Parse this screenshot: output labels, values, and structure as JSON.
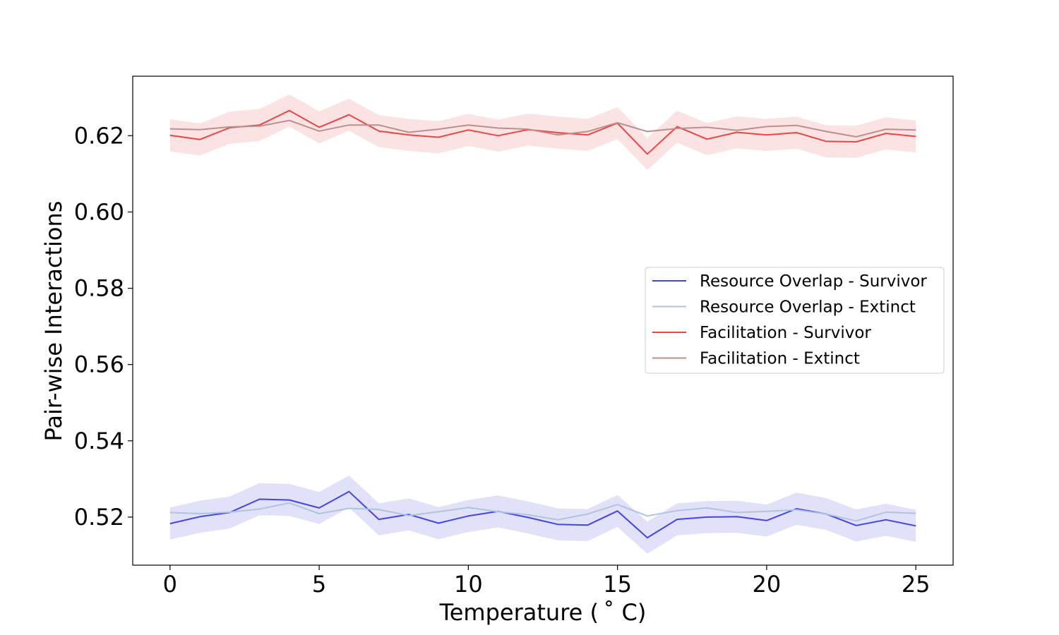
{
  "chart_data": {
    "type": "line",
    "title": "",
    "xlabel": "Temperature ($^\\circ$C)",
    "xlabel_display": "Temperature ( ˚ C)",
    "ylabel": "Pair-wise Interactions",
    "xlim": [
      -1.25,
      26.25
    ],
    "ylim": [
      0.5074,
      0.6356
    ],
    "xticks": [
      0,
      5,
      10,
      15,
      20,
      25
    ],
    "xtick_labels": [
      "0",
      "5",
      "10",
      "15",
      "20",
      "25"
    ],
    "yticks": [
      0.52,
      0.54,
      0.56,
      0.58,
      0.6,
      0.62
    ],
    "ytick_labels": [
      "0.52",
      "0.54",
      "0.56",
      "0.58",
      "0.60",
      "0.62"
    ],
    "grid": false,
    "legend_position": "center-right",
    "x": [
      0,
      1,
      2,
      3,
      4,
      5,
      6,
      7,
      8,
      9,
      10,
      11,
      12,
      13,
      14,
      15,
      16,
      17,
      18,
      19,
      20,
      21,
      22,
      23,
      24,
      25
    ],
    "series": [
      {
        "name": "Resource Overlap - Survivor",
        "color": "#4444ee",
        "band_color": "#c8c8f5",
        "values": [
          0.5183,
          0.5201,
          0.5212,
          0.5247,
          0.5245,
          0.5224,
          0.5267,
          0.5194,
          0.5207,
          0.5184,
          0.5203,
          0.5215,
          0.5199,
          0.5181,
          0.5179,
          0.5216,
          0.5146,
          0.5194,
          0.52,
          0.5201,
          0.5191,
          0.5222,
          0.5208,
          0.5178,
          0.5193,
          0.5177
        ],
        "band": 0.0042
      },
      {
        "name": "Resource Overlap - Extinct",
        "color": "#b0c4de",
        "values": [
          0.5212,
          0.5209,
          0.5213,
          0.5221,
          0.5237,
          0.5209,
          0.5223,
          0.522,
          0.5204,
          0.5214,
          0.5225,
          0.5214,
          0.5206,
          0.5193,
          0.5208,
          0.5233,
          0.5203,
          0.5217,
          0.5224,
          0.5212,
          0.5215,
          0.5219,
          0.5208,
          0.519,
          0.5213,
          0.521
        ]
      },
      {
        "name": "Facilitation - Survivor",
        "color": "#ee4444",
        "band_color": "#f9cccc",
        "values": [
          0.6201,
          0.619,
          0.6221,
          0.6228,
          0.6266,
          0.6222,
          0.6255,
          0.6212,
          0.6202,
          0.6196,
          0.6215,
          0.62,
          0.6216,
          0.6208,
          0.6202,
          0.6233,
          0.6152,
          0.6224,
          0.6191,
          0.6209,
          0.6202,
          0.6208,
          0.6185,
          0.6184,
          0.6206,
          0.6198
        ],
        "band": 0.0042
      },
      {
        "name": "Facilitation - Extinct",
        "color": "#bc8f8f",
        "values": [
          0.6218,
          0.6216,
          0.6223,
          0.6225,
          0.624,
          0.6212,
          0.6228,
          0.6228,
          0.6209,
          0.6217,
          0.6228,
          0.622,
          0.6217,
          0.6202,
          0.6211,
          0.6234,
          0.6211,
          0.6219,
          0.6222,
          0.6214,
          0.6224,
          0.6227,
          0.6211,
          0.6197,
          0.6217,
          0.6215
        ]
      }
    ]
  }
}
